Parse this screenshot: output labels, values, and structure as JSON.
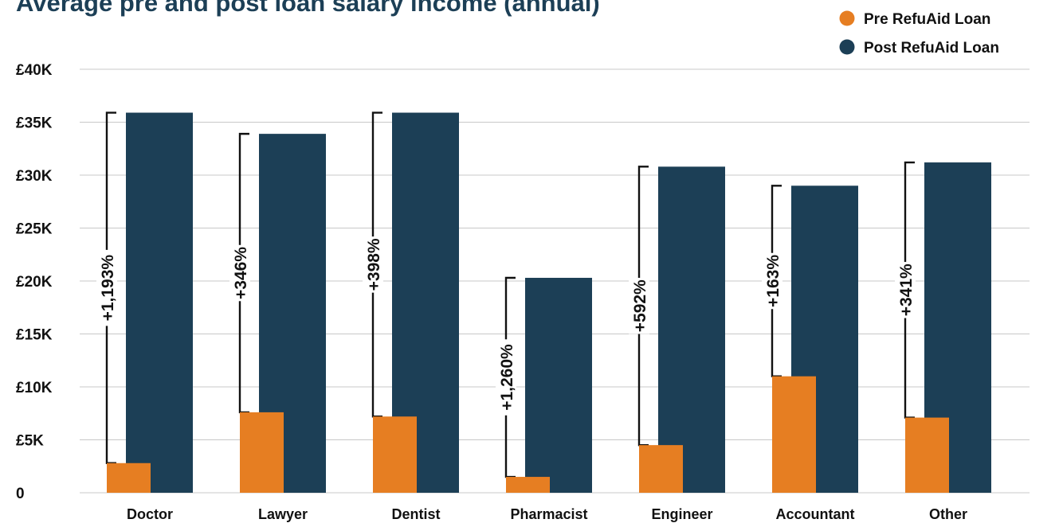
{
  "chart_data": {
    "type": "bar",
    "title": "Average pre and post loan salary income (annual)",
    "categories": [
      "Doctor",
      "Lawyer",
      "Dentist",
      "Pharmacist",
      "Engineer",
      "Accountant",
      "Other"
    ],
    "series": [
      {
        "name": "Pre RefuAid Loan",
        "color": "#E67E22",
        "values": [
          2800,
          7600,
          7200,
          1500,
          4500,
          11000,
          7100
        ]
      },
      {
        "name": "Post RefuAid Loan",
        "color": "#1C3F56",
        "values": [
          35900,
          33900,
          35900,
          20300,
          30800,
          29000,
          31200
        ]
      }
    ],
    "annotations": [
      "+1,193%",
      "+346%",
      "+398%",
      "+1,260%",
      "+592%",
      "+163%",
      "+341%"
    ],
    "y_ticks": [
      {
        "value": 0,
        "label": "0"
      },
      {
        "value": 5000,
        "label": "£5K"
      },
      {
        "value": 10000,
        "label": "£10K"
      },
      {
        "value": 15000,
        "label": "£15K"
      },
      {
        "value": 20000,
        "label": "£20K"
      },
      {
        "value": 25000,
        "label": "£25K"
      },
      {
        "value": 30000,
        "label": "£30K"
      },
      {
        "value": 35000,
        "label": "£35K"
      },
      {
        "value": 40000,
        "label": "£40K"
      }
    ],
    "ylim": [
      0,
      40000
    ],
    "grid": true,
    "legend_position": "top-right",
    "gridline_color": "#C8C8C8"
  }
}
